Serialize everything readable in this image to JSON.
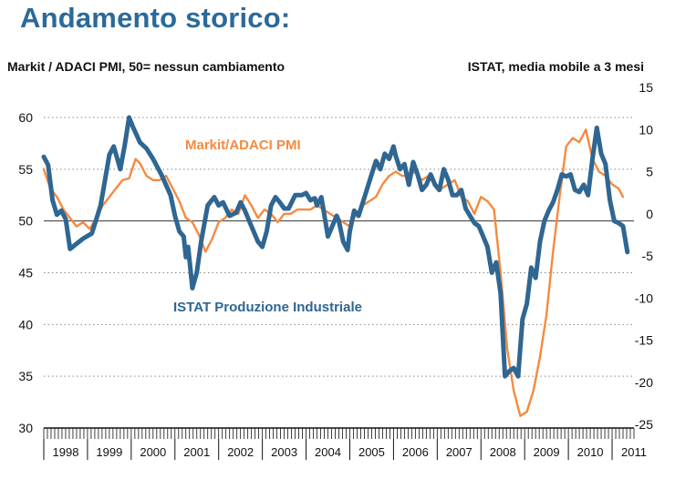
{
  "colors": {
    "title": "#2b6a99",
    "pmi": "#2f6692",
    "istat": "#f58a3f",
    "grid": "#888888",
    "axis": "#111111"
  },
  "chart_data": {
    "type": "line",
    "title": "Andamento storico:",
    "left_axis_label": "Markit / ADACI PMI, 50= nessun cambiamento",
    "right_axis_label": "ISTAT, media mobile a 3 mesi",
    "left_ylim": [
      30,
      60
    ],
    "left_ticks": [
      "60",
      "55",
      "50",
      "45",
      "40",
      "35",
      "30"
    ],
    "right_ylim": [
      -25,
      15
    ],
    "right_ticks": [
      "15",
      "10",
      "5",
      "0",
      "-5",
      "-10",
      "-15",
      "-20",
      "-25"
    ],
    "x_ticks": [
      "1998",
      "1999",
      "2000",
      "2001",
      "2002",
      "2003",
      "2004",
      "2005",
      "2006",
      "2007",
      "2008",
      "2009",
      "2010",
      "2011"
    ],
    "grid": "dotted horizontal at left-axis ticks",
    "series": [
      {
        "name": "Markit/ADACI PMI",
        "axis": "left",
        "x": [
          1998.0,
          1998.1,
          1998.2,
          1998.3,
          1998.4,
          1998.5,
          1998.6,
          1998.75,
          1998.9,
          1999.1,
          1999.3,
          1999.5,
          1999.6,
          1999.75,
          1999.85,
          1999.95,
          2000.05,
          2000.2,
          2000.35,
          2000.5,
          2000.7,
          2000.9,
          2001.0,
          2001.1,
          2001.2,
          2001.25,
          2001.3,
          2001.35,
          2001.4,
          2001.5,
          2001.6,
          2001.75,
          2001.9,
          2002.0,
          2002.1,
          2002.25,
          2002.4,
          2002.5,
          2002.6,
          2002.75,
          2002.9,
          2003.0,
          2003.1,
          2003.2,
          2003.3,
          2003.4,
          2003.5,
          2003.6,
          2003.75,
          2003.9,
          2004.0,
          2004.1,
          2004.2,
          2004.25,
          2004.35,
          2004.5,
          2004.6,
          2004.7,
          2004.75,
          2004.85,
          2004.95,
          2005.0,
          2005.1,
          2005.2,
          2005.35,
          2005.5,
          2005.6,
          2005.7,
          2005.8,
          2005.9,
          2006.0,
          2006.05,
          2006.15,
          2006.25,
          2006.35,
          2006.45,
          2006.55,
          2006.65,
          2006.75,
          2006.85,
          2006.95,
          2007.05,
          2007.15,
          2007.25,
          2007.35,
          2007.45,
          2007.55,
          2007.65,
          2007.75,
          2007.85,
          2007.95,
          2008.05,
          2008.15,
          2008.25,
          2008.35,
          2008.45,
          2008.55,
          2008.65,
          2008.75,
          2008.85,
          2008.95,
          2009.05,
          2009.15,
          2009.25,
          2009.35,
          2009.45,
          2009.55,
          2009.65,
          2009.75,
          2009.85,
          2009.95,
          2010.05,
          2010.15,
          2010.25,
          2010.35,
          2010.45,
          2010.55,
          2010.65,
          2010.75,
          2010.85,
          2010.95,
          2011.05,
          2011.15,
          2011.25,
          2011.35
        ],
        "values": [
          56.2,
          55.4,
          52.0,
          50.6,
          51.0,
          50.2,
          47.3,
          47.8,
          48.3,
          48.8,
          51.5,
          56.4,
          57.2,
          55.0,
          57.3,
          60.0,
          59.0,
          57.6,
          57.0,
          56.0,
          54.4,
          52.5,
          50.5,
          49.0,
          48.5,
          46.5,
          47.5,
          45.5,
          43.5,
          45.0,
          48.0,
          51.5,
          52.3,
          51.5,
          51.8,
          50.5,
          50.8,
          51.8,
          51.0,
          49.5,
          48.0,
          47.5,
          49.0,
          51.5,
          52.3,
          51.8,
          51.2,
          51.2,
          52.5,
          52.5,
          52.7,
          52.0,
          52.2,
          51.5,
          52.3,
          48.5,
          49.5,
          50.5,
          50.0,
          48.0,
          47.2,
          49.0,
          51.0,
          50.5,
          52.5,
          54.5,
          55.8,
          55.0,
          56.5,
          56.0,
          57.2,
          56.3,
          55.0,
          55.5,
          53.5,
          55.7,
          54.5,
          53.0,
          53.5,
          54.5,
          53.5,
          53.0,
          55.0,
          54.0,
          52.5,
          52.5,
          53.0,
          51.2,
          50.5,
          49.8,
          49.5,
          48.5,
          47.5,
          45.0,
          46.0,
          43.0,
          35.0,
          35.5,
          35.8,
          35.0,
          40.5,
          42.0,
          45.5,
          44.5,
          48.0,
          50.0,
          51.0,
          51.8,
          53.0,
          54.5,
          54.3,
          54.5,
          53.0,
          52.8,
          53.5,
          52.5,
          56.0,
          59.0,
          56.5,
          55.5,
          52.0,
          50.0,
          49.8,
          49.5,
          47.0
        ]
      },
      {
        "name": "ISTAT Produzione Industriale",
        "axis": "right",
        "x": [
          1998.0,
          1998.15,
          1998.3,
          1998.45,
          1998.6,
          1998.75,
          1998.9,
          1999.05,
          1999.2,
          1999.35,
          1999.5,
          1999.65,
          1999.8,
          1999.95,
          2000.1,
          2000.2,
          2000.35,
          2000.5,
          2000.65,
          2000.8,
          2000.95,
          2001.1,
          2001.25,
          2001.4,
          2001.55,
          2001.7,
          2001.85,
          2002.0,
          2002.15,
          2002.3,
          2002.45,
          2002.6,
          2002.75,
          2002.9,
          2003.05,
          2003.2,
          2003.35,
          2003.5,
          2003.65,
          2003.8,
          2003.95,
          2004.1,
          2004.25,
          2004.4,
          2004.55,
          2004.7,
          2004.85,
          2005.0,
          2005.15,
          2005.3,
          2005.45,
          2005.6,
          2005.75,
          2005.9,
          2006.05,
          2006.2,
          2006.35,
          2006.5,
          2006.65,
          2006.8,
          2006.95,
          2007.1,
          2007.25,
          2007.4,
          2007.55,
          2007.7,
          2007.85,
          2008.0,
          2008.15,
          2008.3,
          2008.45,
          2008.6,
          2008.75,
          2008.9,
          2009.05,
          2009.2,
          2009.35,
          2009.5,
          2009.65,
          2009.8,
          2009.95,
          2010.1,
          2010.25,
          2010.4,
          2010.55,
          2010.7,
          2010.85,
          2011.0,
          2011.15,
          2011.25
        ],
        "values": [
          5.3,
          3.0,
          2.0,
          0.5,
          -0.5,
          -1.5,
          -1.0,
          -1.8,
          -0.5,
          1.0,
          2.0,
          3.0,
          4.0,
          4.2,
          6.5,
          6.0,
          4.5,
          4.0,
          4.0,
          4.5,
          3.0,
          1.5,
          -0.5,
          -1.0,
          -2.5,
          -4.5,
          -3.0,
          -1.0,
          -0.5,
          0.5,
          0.0,
          2.2,
          1.0,
          -0.5,
          0.5,
          0.0,
          -1.0,
          0.0,
          0.0,
          0.5,
          0.5,
          0.5,
          1.0,
          0.5,
          0.0,
          -0.5,
          -1.0,
          -1.5,
          0.0,
          1.0,
          1.5,
          2.0,
          3.5,
          4.5,
          5.0,
          4.5,
          4.5,
          5.0,
          4.0,
          4.5,
          3.5,
          3.0,
          3.5,
          4.0,
          2.0,
          1.5,
          0.0,
          2.0,
          1.5,
          0.5,
          -7.0,
          -16.0,
          -21.0,
          -24.0,
          -23.5,
          -21.0,
          -17.0,
          -12.0,
          -4.5,
          2.0,
          8.0,
          9.0,
          8.5,
          10.0,
          6.5,
          5.0,
          4.5,
          3.5,
          3.0,
          2.0
        ]
      }
    ],
    "annotations": [
      {
        "text": "ISTAT Produzione Industriale",
        "series": 1
      },
      {
        "text": "Markit/ADACI PMI",
        "series": 0
      }
    ]
  }
}
